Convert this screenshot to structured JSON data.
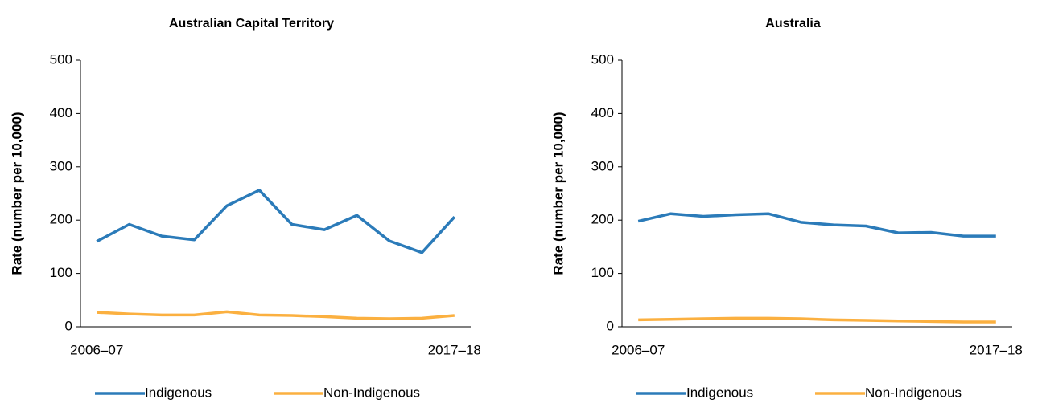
{
  "chart_data": [
    {
      "type": "line",
      "title": "Australian Capital Territory",
      "y_label": "Rate (number per 10,000)",
      "categories": [
        "2006–07",
        null,
        null,
        null,
        null,
        null,
        null,
        null,
        null,
        null,
        null,
        "2017–18"
      ],
      "series": [
        {
          "name": "Indigenous",
          "color": "#2b7bb9",
          "values": [
            160,
            192,
            170,
            163,
            227,
            256,
            192,
            182,
            209,
            161,
            139,
            206
          ]
        },
        {
          "name": "Non-Indigenous",
          "color": "#fbb040",
          "values": [
            27,
            24,
            22,
            22,
            28,
            22,
            21,
            19,
            16,
            15,
            16,
            21
          ]
        }
      ],
      "ylim": [
        0,
        500
      ],
      "yticks": [
        0,
        100,
        200,
        300,
        400,
        500
      ],
      "grid": false,
      "legend": "bottom"
    },
    {
      "type": "line",
      "title": "Australia",
      "y_label": "Rate (number per 10,000)",
      "categories": [
        "2006–07",
        null,
        null,
        null,
        null,
        null,
        null,
        null,
        null,
        null,
        null,
        "2017–18"
      ],
      "series": [
        {
          "name": "Indigenous",
          "color": "#2b7bb9",
          "values": [
            198,
            212,
            207,
            210,
            212,
            196,
            191,
            189,
            176,
            177,
            170,
            170
          ]
        },
        {
          "name": "Non-Indigenous",
          "color": "#fbb040",
          "values": [
            13,
            14,
            15,
            16,
            16,
            15,
            13,
            12,
            11,
            10,
            9,
            9
          ]
        }
      ],
      "ylim": [
        0,
        500
      ],
      "yticks": [
        0,
        100,
        200,
        300,
        400,
        500
      ],
      "grid": false,
      "legend": "bottom"
    }
  ]
}
